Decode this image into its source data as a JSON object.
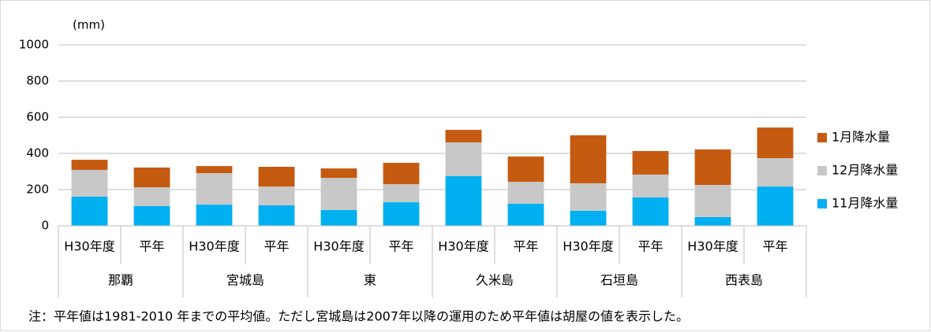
{
  "chart_data": {
    "type": "bar",
    "stacked": true,
    "y_unit": "(mm)",
    "categories": [
      "H30年度",
      "平年",
      "H30年度",
      "平年",
      "H30年度",
      "平年",
      "H30年度",
      "平年",
      "H30年度",
      "平年",
      "H30年度",
      "平年"
    ],
    "groups": [
      "那覇",
      "宮城島",
      "東",
      "久米島",
      "石垣島",
      "西表島"
    ],
    "series": [
      {
        "name": "11月降水量",
        "color": "#00b0f0",
        "values": [
          161,
          109,
          117,
          113,
          87,
          130,
          274,
          122,
          83,
          157,
          48,
          217
        ]
      },
      {
        "name": "12月降水量",
        "color": "#c8c8c8",
        "values": [
          148,
          104,
          174,
          104,
          178,
          100,
          187,
          121,
          152,
          126,
          178,
          157
        ]
      },
      {
        "name": "1月降水量",
        "color": "#c55a11",
        "values": [
          56,
          109,
          39,
          109,
          52,
          118,
          69,
          140,
          265,
          130,
          196,
          169
        ]
      }
    ],
    "ylim": [
      0,
      1000
    ],
    "yticks": [
      0,
      200,
      400,
      600,
      800,
      1000
    ],
    "grid": true,
    "legend": "right",
    "note": "注：平年値は1981-2010 年までの平均値。ただし宮城島は2007年以降の運用のため平年値は胡屋の値を表示した。"
  }
}
